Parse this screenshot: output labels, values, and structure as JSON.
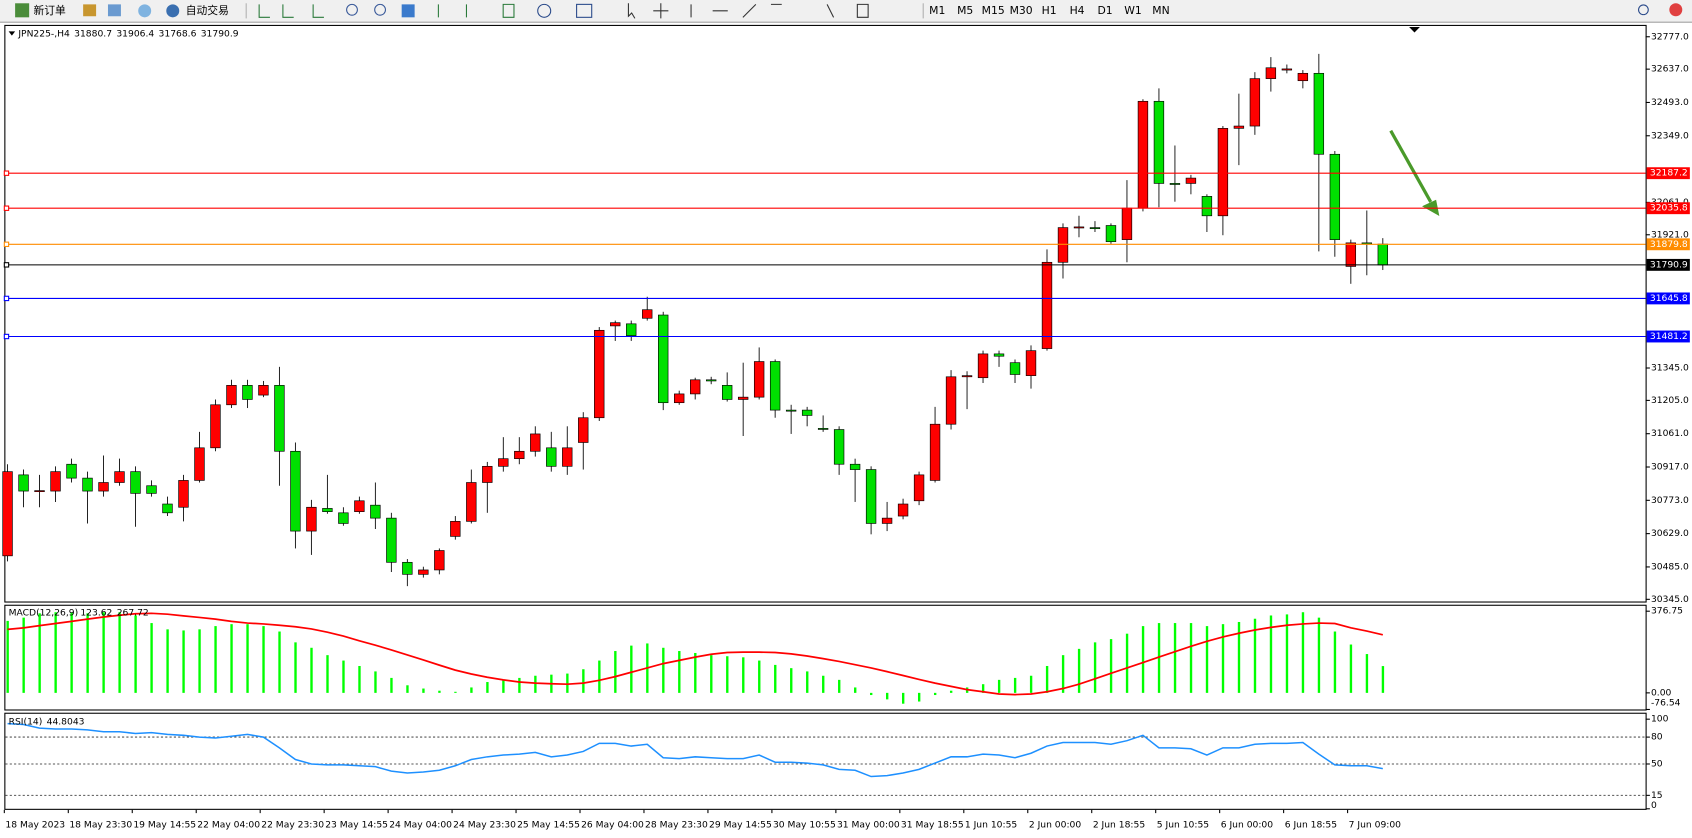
{
  "toolbar": {
    "new_order": "新订单",
    "auto_trading": "自动交易",
    "timeframes": [
      "M1",
      "M5",
      "M15",
      "M30",
      "H1",
      "H4",
      "D1",
      "W1",
      "MN"
    ]
  },
  "chart_data": [
    {
      "type": "candlestick",
      "symbol": "JPN225-,H4",
      "up_color": "#ff0000",
      "down_color": "#00e000",
      "categories": [
        "18 May 2023",
        null,
        null,
        null,
        "18 May 23:30",
        null,
        null,
        null,
        "19 May 14:55",
        null,
        null,
        null,
        "22 May 04:00",
        null,
        null,
        null,
        "22 May 23:30",
        null,
        null,
        null,
        "23 May 14:55",
        null,
        null,
        null,
        "24 May 04:00",
        null,
        null,
        null,
        "24 May 23:30",
        null,
        null,
        null,
        "25 May 14:55",
        null,
        null,
        null,
        "26 May 04:00",
        null,
        null,
        null,
        "28 May 23:30",
        null,
        null,
        null,
        "29 May 14:55",
        null,
        null,
        null,
        "30 May 10:55",
        null,
        null,
        null,
        "31 May 00:00",
        null,
        null,
        null,
        "31 May 18:55",
        null,
        null,
        null,
        "1 Jun 10:55",
        null,
        null,
        null,
        "2 Jun 00:00",
        null,
        null,
        null,
        "2 Jun 18:55",
        null,
        null,
        null,
        "5 Jun 10:55",
        null,
        null,
        null,
        "6 Jun 00:00",
        null,
        null,
        null,
        "6 Jun 18:55",
        null,
        null,
        null,
        "7 Jun 09:00",
        null,
        null
      ],
      "open": [
        30533,
        30883,
        30813,
        30813,
        30929,
        30869,
        30813,
        30850,
        30897,
        30836,
        30757,
        30743,
        30859,
        31000,
        31186,
        31270,
        31228,
        31270,
        30985,
        30640,
        30738,
        30719,
        30724,
        30752,
        30696,
        30505,
        30453,
        30472,
        30617,
        30682,
        30850,
        30920,
        30953,
        30985,
        31000,
        30920,
        31023,
        31130,
        31527,
        31536,
        31560,
        31574,
        31195,
        31233,
        31294,
        31270,
        31209,
        31219,
        31373,
        31163,
        31163,
        31084,
        31079,
        30929,
        30906,
        30673,
        30705,
        30771,
        30859,
        31102,
        31307,
        31303,
        31406,
        31368,
        31312,
        31429,
        31802,
        31952,
        31952,
        31961,
        31900,
        32036,
        32498,
        32143,
        32143,
        32087,
        32003,
        32381,
        32391,
        32596,
        32633,
        32587,
        32619,
        32269,
        31784,
        31886,
        31880.7
      ],
      "high": [
        30929,
        30906,
        30883,
        30920,
        30953,
        30897,
        30967,
        30953,
        30920,
        30859,
        30789,
        30883,
        31069,
        31209,
        31294,
        31294,
        31289,
        31350,
        31023,
        30775,
        30883,
        30743,
        30789,
        30850,
        30719,
        30519,
        30486,
        30565,
        30705,
        30906,
        30939,
        31046,
        31046,
        31093,
        31069,
        31093,
        31154,
        31522,
        31550,
        31550,
        31653,
        31588,
        31247,
        31303,
        31307,
        31326,
        31368,
        31434,
        31382,
        31186,
        31177,
        31140,
        31093,
        30953,
        30920,
        30766,
        30780,
        30897,
        31177,
        31336,
        31331,
        31420,
        31420,
        31382,
        31443,
        31858,
        31970,
        32003,
        31980,
        31970,
        32157,
        32507,
        32554,
        32307,
        32180,
        32096,
        32391,
        32531,
        32624,
        32689,
        32657,
        32633,
        32703,
        32283,
        31900,
        32026,
        31906.4
      ],
      "low": [
        30509,
        30743,
        30743,
        30766,
        30850,
        30673,
        30789,
        30836,
        30659,
        30789,
        30705,
        30682,
        30850,
        30985,
        31172,
        31172,
        31219,
        30836,
        30565,
        30537,
        30715,
        30663,
        30715,
        30649,
        30463,
        30402,
        30439,
        30453,
        30603,
        30673,
        30719,
        30897,
        30929,
        30962,
        30897,
        30883,
        30906,
        31116,
        31462,
        31462,
        31550,
        31163,
        31186,
        31209,
        31275,
        31200,
        31051,
        31209,
        31130,
        31060,
        31093,
        31069,
        30883,
        30766,
        30626,
        30640,
        30691,
        30752,
        30850,
        31079,
        31167,
        31280,
        31350,
        31280,
        31256,
        31420,
        31732,
        31910,
        31933,
        31882,
        31802,
        32022,
        32040,
        32064,
        32096,
        31933,
        31919,
        32222,
        32353,
        32540,
        32619,
        32554,
        31849,
        31826,
        31709,
        31746,
        31768.6
      ],
      "close": [
        30897,
        30813,
        30815,
        30897,
        30869,
        30813,
        30850,
        30897,
        30803,
        30803,
        30719,
        30859,
        31000,
        31186,
        31270,
        31209,
        31270,
        30985,
        30640,
        30743,
        30724,
        30673,
        30771,
        30696,
        30505,
        30453,
        30472,
        30556,
        30682,
        30850,
        30920,
        30953,
        30985,
        31060,
        30920,
        31000,
        31130,
        31508,
        31541,
        31485,
        31597,
        31195,
        31233,
        31294,
        31289,
        31209,
        31219,
        31373,
        31163,
        31160,
        31140,
        31080,
        30929,
        30906,
        30673,
        30696,
        30757,
        30883,
        31102,
        31307,
        31312,
        31406,
        31396,
        31317,
        31420,
        31802,
        31952,
        31955,
        31950,
        31891,
        32036,
        32498,
        32143,
        32140,
        32166,
        32003,
        32381,
        32391,
        32596,
        32643,
        32638,
        32619,
        32269,
        31900,
        31886,
        31881,
        31790.9
      ],
      "ylim": [
        30345,
        32777
      ],
      "yticks": [
        {
          "value": 32777,
          "label": "32777.0"
        },
        {
          "value": 32637,
          "label": "32637.0"
        },
        {
          "value": 32493,
          "label": "32493.0"
        },
        {
          "value": 32349,
          "label": "32349.0"
        },
        {
          "value": 32061,
          "label": "32061.0"
        },
        {
          "value": 31921,
          "label": "31921.0"
        },
        {
          "value": 31345,
          "label": "31345.0"
        },
        {
          "value": 31205,
          "label": "31205.0"
        },
        {
          "value": 31061,
          "label": "31061.0"
        },
        {
          "value": 30917,
          "label": "30917.0"
        },
        {
          "value": 30773,
          "label": "30773.0"
        },
        {
          "value": 30629,
          "label": "30629.0"
        },
        {
          "value": 30485,
          "label": "30485.0"
        },
        {
          "value": 30345,
          "label": "30345.0"
        }
      ],
      "levels": [
        {
          "value": 32187.2,
          "color": "#ff0000"
        },
        {
          "value": 32035.8,
          "color": "#ff0000"
        },
        {
          "value": 31879.8,
          "color": "#ff8c00"
        },
        {
          "value": 31790.9,
          "color": "#000000"
        },
        {
          "value": 31645.8,
          "color": "#0000ff"
        },
        {
          "value": 31481.2,
          "color": "#0000ff"
        }
      ]
    },
    {
      "type": "macd",
      "title": "MACD(12,26,9)",
      "histogram": {
        "color": "#00ff00",
        "values": [
          332,
          347,
          367,
          372,
          372,
          367,
          372,
          372,
          357,
          322,
          293,
          288,
          293,
          308,
          317,
          317,
          308,
          283,
          233,
          208,
          174,
          149,
          124,
          99,
          69,
          35,
          20,
          10,
          5,
          25,
          50,
          60,
          69,
          79,
          84,
          89,
          109,
          149,
          193,
          218,
          228,
          208,
          193,
          184,
          174,
          169,
          164,
          149,
          129,
          114,
          99,
          79,
          60,
          25,
          -10,
          -30,
          -50,
          -40,
          -10,
          10,
          25,
          40,
          60,
          69,
          79,
          124,
          174,
          203,
          233,
          248,
          273,
          308,
          322,
          322,
          322,
          308,
          317,
          327,
          342,
          357,
          362,
          372,
          347,
          283,
          223,
          179,
          123.62
        ]
      },
      "signal": {
        "color": "#ff0000",
        "values": [
          293,
          300,
          310,
          320,
          330,
          340,
          350,
          358,
          365,
          367,
          363,
          355,
          348,
          340,
          330,
          322,
          318,
          312,
          305,
          295,
          280,
          262,
          240,
          220,
          198,
          175,
          152,
          128,
          105,
          87,
          72,
          60,
          50,
          45,
          42,
          40,
          45,
          58,
          75,
          95,
          115,
          135,
          150,
          165,
          178,
          186,
          188,
          188,
          186,
          180,
          170,
          158,
          145,
          130,
          115,
          98,
          80,
          62,
          45,
          30,
          15,
          5,
          -5,
          -8,
          -5,
          5,
          20,
          40,
          65,
          90,
          115,
          140,
          165,
          190,
          215,
          238,
          258,
          275,
          290,
          302,
          312,
          318,
          322,
          320,
          300,
          285,
          267.72
        ]
      },
      "ylim": [
        -76.54,
        376.75
      ],
      "yticks": [
        376.75,
        {
          "value": 0,
          "label": "0.00"
        },
        -76.54
      ]
    },
    {
      "type": "line",
      "title": "RSI(14)",
      "color": "#1e90ff",
      "values": [
        95,
        94,
        90,
        89,
        89,
        88,
        86,
        86,
        84,
        85,
        83,
        82,
        80,
        79,
        81,
        83,
        80,
        68,
        55,
        50,
        49,
        49,
        48,
        47,
        42,
        40,
        41,
        43,
        48,
        55,
        58,
        60,
        61,
        63,
        58,
        60,
        64,
        73,
        73,
        70,
        72,
        57,
        56,
        58,
        57,
        56,
        56,
        60,
        52,
        52,
        51,
        49,
        44,
        43,
        36,
        37,
        40,
        44,
        51,
        58,
        58,
        61,
        60,
        57,
        62,
        70,
        74,
        74,
        74,
        72,
        76,
        82,
        68,
        68,
        67,
        60,
        68,
        68,
        72,
        73,
        73,
        74,
        61,
        49,
        48,
        48,
        44.8043
      ],
      "ylim": [
        0,
        100
      ],
      "yticks": [
        100,
        80,
        50,
        15,
        0
      ],
      "levels": [
        80,
        50,
        15
      ]
    }
  ]
}
